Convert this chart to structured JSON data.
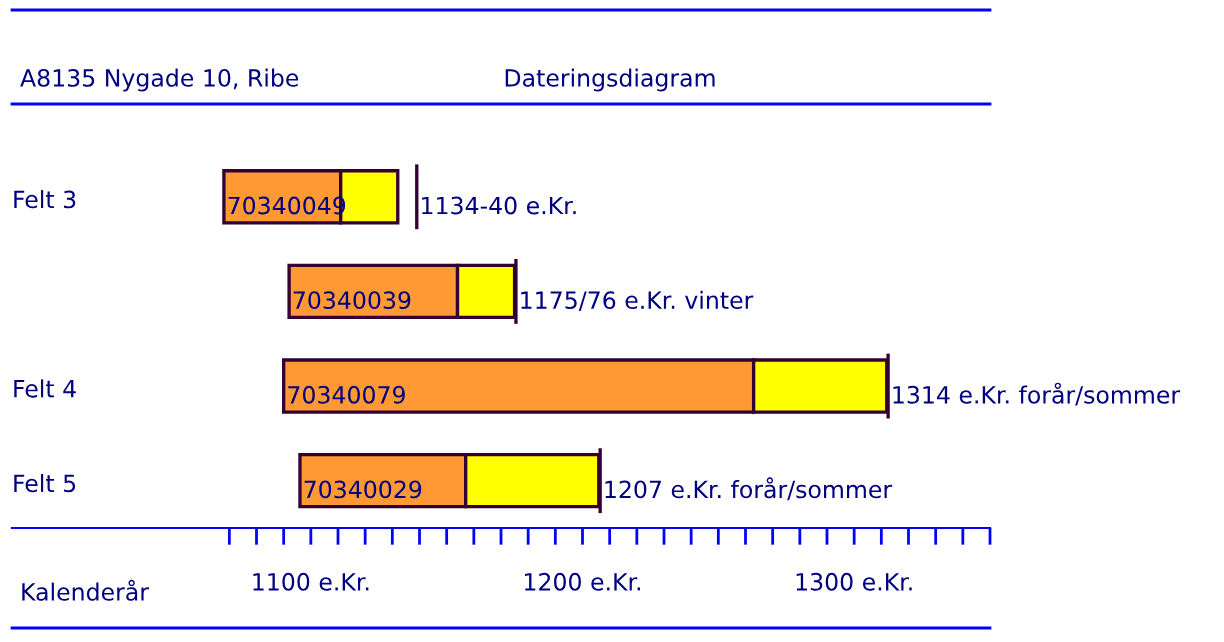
{
  "chart_data": {
    "type": "bar",
    "orientation": "horizontal",
    "title": "A8135 Nygade 10, Ribe",
    "subtitle": "Dateringsdiagram",
    "xlabel": "Kalenderår",
    "categories": [
      "70340049",
      "70340039",
      "70340079",
      "70340029"
    ],
    "series": [
      {
        "color": "#ff9933",
        "base": [
          1068,
          1092,
          1090,
          1096
        ],
        "values": [
          43,
          62,
          173,
          61
        ]
      },
      {
        "color": "#ffff00",
        "base": [
          1111,
          1154,
          1263,
          1157
        ],
        "values": [
          21,
          21,
          49,
          49
        ]
      }
    ],
    "xlim": [
      990,
      1350
    ],
    "xticks": [
      {
        "value": 1070,
        "label": null
      },
      {
        "value": 1080,
        "label": null
      },
      {
        "value": 1090,
        "label": null
      },
      {
        "value": 1100,
        "label": "1100 e.Kr."
      },
      {
        "value": 1110,
        "label": null
      },
      {
        "value": 1120,
        "label": null
      },
      {
        "value": 1130,
        "label": null
      },
      {
        "value": 1140,
        "label": null
      },
      {
        "value": 1150,
        "label": null
      },
      {
        "value": 1160,
        "label": null
      },
      {
        "value": 1170,
        "label": null
      },
      {
        "value": 1180,
        "label": null
      },
      {
        "value": 1190,
        "label": null
      },
      {
        "value": 1200,
        "label": "1200 e.Kr."
      },
      {
        "value": 1210,
        "label": null
      },
      {
        "value": 1220,
        "label": null
      },
      {
        "value": 1230,
        "label": null
      },
      {
        "value": 1240,
        "label": null
      },
      {
        "value": 1250,
        "label": null
      },
      {
        "value": 1260,
        "label": null
      },
      {
        "value": 1270,
        "label": null
      },
      {
        "value": 1280,
        "label": null
      },
      {
        "value": 1290,
        "label": null
      },
      {
        "value": 1300,
        "label": "1300 e.Kr."
      },
      {
        "value": 1310,
        "label": null
      },
      {
        "value": 1320,
        "label": null
      },
      {
        "value": 1330,
        "label": null
      },
      {
        "value": 1340,
        "label": null
      },
      {
        "value": 1350,
        "label": null
      }
    ],
    "annotations": [
      "Felt 3",
      "Felt 4",
      "Felt 5",
      "1134-40 e.Kr.",
      "1175/76 e.Kr. vinter",
      "1314 e.Kr. forår/sommer",
      "1207 e.Kr. forår/sommer"
    ],
    "grid": false,
    "legend": false
  }
}
